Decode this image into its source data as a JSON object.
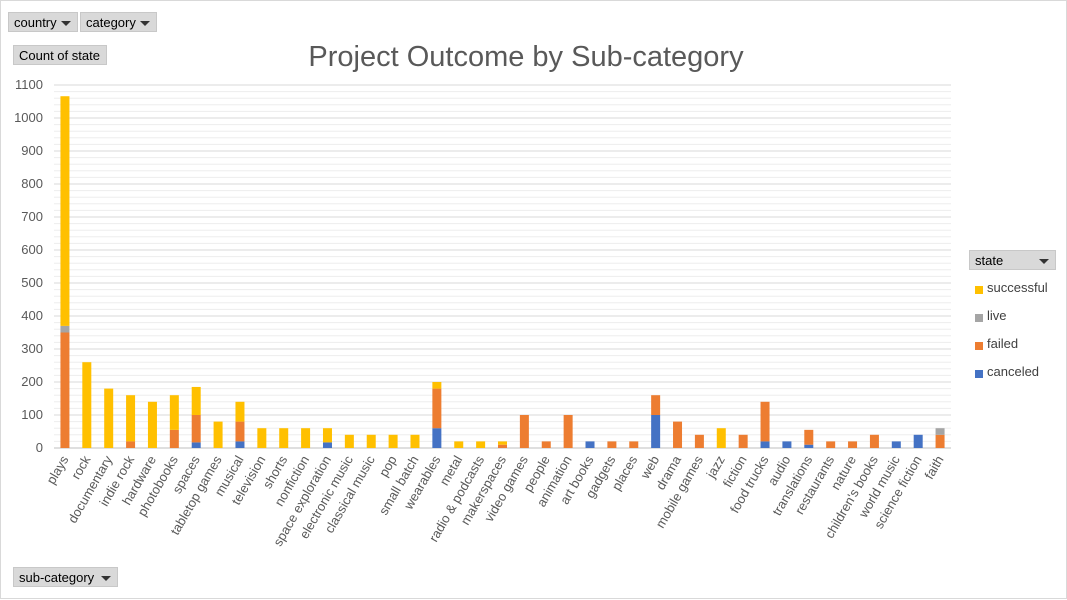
{
  "filters": {
    "country_label": "country",
    "category_label": "category",
    "values_label": "Count of state",
    "axis_field_label": "sub-category",
    "legend_field_label": "state"
  },
  "colors": {
    "successful": "#ffc000",
    "live": "#a5a5a5",
    "failed": "#ed7d31",
    "canceled": "#4472c4"
  },
  "chart_data": {
    "type": "bar",
    "stacked": true,
    "title": "Project Outcome by Sub-category",
    "xlabel": "",
    "ylabel": "",
    "ylim": [
      0,
      1100
    ],
    "yticks": [
      0,
      100,
      200,
      300,
      400,
      500,
      600,
      700,
      800,
      900,
      1000,
      1100
    ],
    "grid": true,
    "legend_position": "right",
    "categories": [
      "plays",
      "rock",
      "documentary",
      "indie rock",
      "hardware",
      "photobooks",
      "spaces",
      "tabletop games",
      "musical",
      "television",
      "shorts",
      "nonfiction",
      "space exploration",
      "electronic music",
      "classical music",
      "pop",
      "small batch",
      "wearables",
      "metal",
      "radio & podcasts",
      "makerspaces",
      "video games",
      "people",
      "animation",
      "art books",
      "gadgets",
      "places",
      "web",
      "drama",
      "mobile games",
      "jazz",
      "fiction",
      "food trucks",
      "audio",
      "translations",
      "restaurants",
      "nature",
      "children's books",
      "world music",
      "science fiction",
      "faith"
    ],
    "series": [
      {
        "name": "canceled",
        "values": [
          0,
          0,
          0,
          0,
          0,
          0,
          17,
          0,
          20,
          0,
          0,
          0,
          17,
          0,
          0,
          0,
          0,
          60,
          0,
          0,
          0,
          0,
          0,
          0,
          20,
          0,
          0,
          100,
          0,
          0,
          0,
          0,
          20,
          20,
          10,
          0,
          0,
          0,
          20,
          40,
          0
        ]
      },
      {
        "name": "failed",
        "values": [
          350,
          0,
          0,
          20,
          0,
          55,
          83,
          0,
          60,
          0,
          0,
          0,
          0,
          0,
          0,
          0,
          0,
          120,
          0,
          0,
          10,
          100,
          20,
          100,
          0,
          20,
          20,
          60,
          80,
          40,
          0,
          40,
          120,
          0,
          45,
          20,
          20,
          40,
          0,
          0,
          40
        ]
      },
      {
        "name": "live",
        "values": [
          20,
          0,
          0,
          0,
          0,
          0,
          0,
          0,
          0,
          0,
          0,
          0,
          0,
          0,
          0,
          0,
          0,
          0,
          0,
          0,
          0,
          0,
          0,
          0,
          0,
          0,
          0,
          0,
          0,
          0,
          0,
          0,
          0,
          0,
          0,
          0,
          0,
          0,
          0,
          0,
          20
        ]
      },
      {
        "name": "successful",
        "values": [
          696,
          260,
          180,
          140,
          140,
          105,
          85,
          80,
          60,
          60,
          60,
          60,
          43,
          40,
          40,
          40,
          40,
          20,
          20,
          20,
          10,
          0,
          0,
          0,
          0,
          0,
          0,
          0,
          0,
          0,
          60,
          0,
          0,
          0,
          0,
          0,
          0,
          0,
          0,
          0,
          0
        ]
      }
    ]
  }
}
